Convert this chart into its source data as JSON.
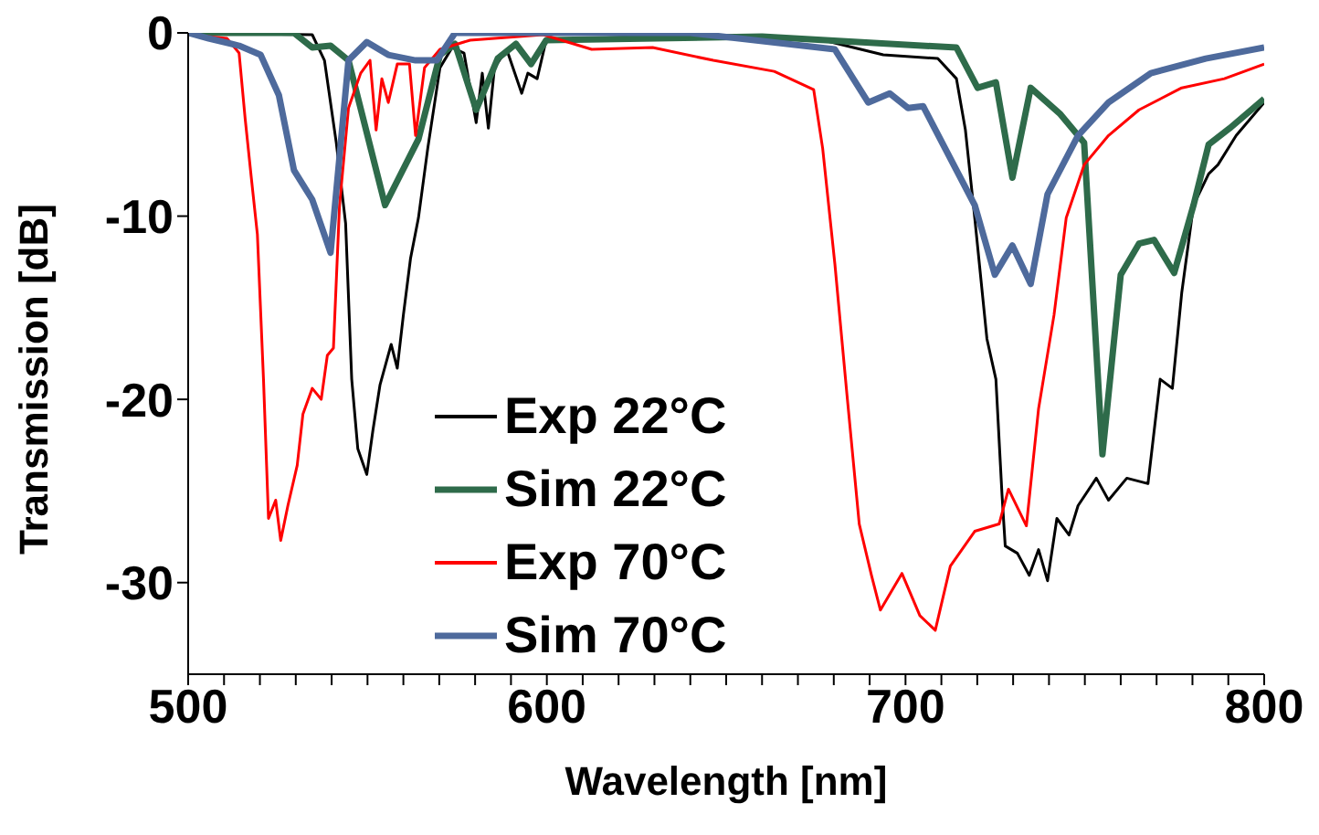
{
  "chart_data": {
    "type": "line",
    "xlabel": "Wavelength [nm]",
    "ylabel": "Transmission [dB]",
    "xlim": [
      500,
      800
    ],
    "ylim": [
      -35,
      0
    ],
    "xticks": [
      500,
      {
        "value": 510,
        "label": null
      },
      {
        "value": 520,
        "label": null
      },
      {
        "value": 530,
        "label": null
      },
      {
        "value": 540,
        "label": null
      },
      {
        "value": 550,
        "label": null
      },
      {
        "value": 560,
        "label": null
      },
      {
        "value": 570,
        "label": null
      },
      {
        "value": 580,
        "label": null
      },
      {
        "value": 590,
        "label": null
      },
      600,
      {
        "value": 610,
        "label": null
      },
      {
        "value": 620,
        "label": null
      },
      {
        "value": 630,
        "label": null
      },
      {
        "value": 640,
        "label": null
      },
      {
        "value": 650,
        "label": null
      },
      {
        "value": 660,
        "label": null
      },
      {
        "value": 670,
        "label": null
      },
      {
        "value": 680,
        "label": null
      },
      {
        "value": 690,
        "label": null
      },
      700,
      {
        "value": 710,
        "label": null
      },
      {
        "value": 720,
        "label": null
      },
      {
        "value": 730,
        "label": null
      },
      {
        "value": 740,
        "label": null
      },
      {
        "value": 750,
        "label": null
      },
      {
        "value": 760,
        "label": null
      },
      {
        "value": 770,
        "label": null
      },
      {
        "value": 780,
        "label": null
      },
      {
        "value": 790,
        "label": null
      },
      800
    ],
    "yticks": [
      0,
      -10,
      -20,
      -30
    ],
    "grid": false,
    "legend": "left",
    "marker": "none",
    "line_style": "solid",
    "series": [
      {
        "name": "Exp 22°C",
        "color": "#000000",
        "x": [
          500,
          534.6,
          538,
          541.3,
          543.9,
          545.6,
          547.3,
          549.8,
          551.5,
          553.5,
          556.6,
          558.3,
          560,
          562,
          564.2,
          566.8,
          570.2,
          573.6,
          576.9,
          580.3,
          582,
          583.7,
          585.4,
          588.8,
          593,
          594.7,
          597.3,
          599.8,
          640,
          675,
          693.8,
          709,
          714.2,
          716.7,
          719.3,
          722.7,
          725.2,
          726.9,
          727.8,
          731.2,
          734.5,
          737.1,
          739.6,
          742.2,
          745.6,
          748.1,
          753.2,
          756.6,
          761.7,
          767.6,
          771,
          774.4,
          777,
          780.3,
          784.5,
          787.1,
          792.2,
          800
        ],
        "values": [
          0,
          -0.1,
          -1.5,
          -6,
          -10.4,
          -18.9,
          -22.7,
          -24.1,
          -21.7,
          -19.2,
          -17,
          -18.3,
          -15.4,
          -12.3,
          -10.1,
          -6.3,
          -1.9,
          -0.8,
          -1.1,
          -4.9,
          -2.2,
          -5.2,
          -1.9,
          -0.9,
          -3.3,
          -2.2,
          -2.5,
          -0.4,
          -0.1,
          -0.3,
          -1.2,
          -1.4,
          -2.5,
          -5.3,
          -10.1,
          -16.7,
          -18.9,
          -25.2,
          -28,
          -28.4,
          -29.6,
          -28.2,
          -29.9,
          -26.5,
          -27.4,
          -25.8,
          -24.3,
          -25.5,
          -24.3,
          -24.6,
          -18.9,
          -19.4,
          -14.2,
          -9.4,
          -7.7,
          -7.2,
          -5.6,
          -3.8
        ]
      },
      {
        "name": "Sim 22°C",
        "color": "#2e6b4a",
        "x": [
          500,
          529.5,
          534.6,
          539.7,
          544.7,
          554.9,
          564.2,
          570.2,
          574.4,
          580.3,
          586.3,
          591.4,
          595.6,
          599.8,
          660,
          714.2,
          720.1,
          725.2,
          729.8,
          734.9,
          743,
          749.8,
          754.9,
          760,
          765.1,
          769.3,
          774.9,
          780.3,
          784.5,
          790.4,
          800
        ],
        "values": [
          0,
          0,
          -0.8,
          -0.7,
          -1.5,
          -9.4,
          -5.8,
          -1.2,
          -0.6,
          -4.2,
          -1.4,
          -0.6,
          -1.7,
          -0.4,
          -0.2,
          -0.8,
          -3,
          -2.7,
          -7.9,
          -3,
          -4.4,
          -6,
          -23,
          -13.2,
          -11.5,
          -11.3,
          -13.1,
          -9.4,
          -6.1,
          -5.2,
          -3.6
        ]
      },
      {
        "name": "Exp 70°C",
        "color": "#ff0000",
        "x": [
          500,
          510.8,
          514.2,
          515.9,
          517.6,
          519.3,
          521,
          522.4,
          524.4,
          525.8,
          527.8,
          530.4,
          532,
          534.6,
          537.1,
          538.8,
          540.5,
          542.2,
          544.7,
          548.1,
          550.7,
          552.4,
          554,
          555.8,
          558.3,
          561.7,
          563.4,
          565.9,
          570.2,
          578.6,
          599,
          612.5,
          629.5,
          646.4,
          663.4,
          674.4,
          676.9,
          680.3,
          683.7,
          687.1,
          690.5,
          693,
          699,
          704,
          708.3,
          712.5,
          719.3,
          726.1,
          728.7,
          733.7,
          737.1,
          741.4,
          744.8,
          749.8,
          756.6,
          765.1,
          777,
          788.9,
          800
        ],
        "values": [
          -0.1,
          -0.3,
          -1.1,
          -4.7,
          -7.9,
          -11,
          -18.9,
          -26.5,
          -25.5,
          -27.7,
          -25.8,
          -23.6,
          -20.8,
          -19.4,
          -20,
          -17.6,
          -17.2,
          -9.4,
          -4.1,
          -2.2,
          -1.5,
          -5.3,
          -2.5,
          -3.8,
          -1.7,
          -1.7,
          -5.6,
          -1.9,
          -0.9,
          -0.4,
          -0.1,
          -0.9,
          -0.8,
          -1.5,
          -2.1,
          -3.1,
          -6.3,
          -12.6,
          -19.8,
          -26.8,
          -29.6,
          -31.5,
          -29.5,
          -31.8,
          -32.6,
          -29.1,
          -27.2,
          -26.8,
          -24.9,
          -26.9,
          -20.5,
          -15.4,
          -10.1,
          -7.2,
          -5.6,
          -4.2,
          -3,
          -2.5,
          -1.7
        ]
      },
      {
        "name": "Sim 70°C",
        "color": "#4e6a9c",
        "x": [
          500,
          505.7,
          514.2,
          520.2,
          525.3,
          529.5,
          534.6,
          539.7,
          544.7,
          549.8,
          555.8,
          563.4,
          569.3,
          574.4,
          640,
          680.3,
          689.6,
          695.6,
          700.7,
          704.9,
          719.3,
          724.9,
          729.8,
          734.9,
          739.6,
          748.1,
          756.6,
          768.4,
          783.7,
          800
        ],
        "values": [
          0,
          -0.3,
          -0.7,
          -1.2,
          -3.4,
          -7.5,
          -9.1,
          -12,
          -1.5,
          -0.5,
          -1.2,
          -1.5,
          -1.5,
          0,
          0,
          -0.9,
          -3.8,
          -3.3,
          -4.1,
          -4,
          -9.4,
          -13.2,
          -11.6,
          -13.7,
          -8.8,
          -5.6,
          -3.8,
          -2.2,
          -1.4,
          -0.8
        ]
      }
    ]
  }
}
